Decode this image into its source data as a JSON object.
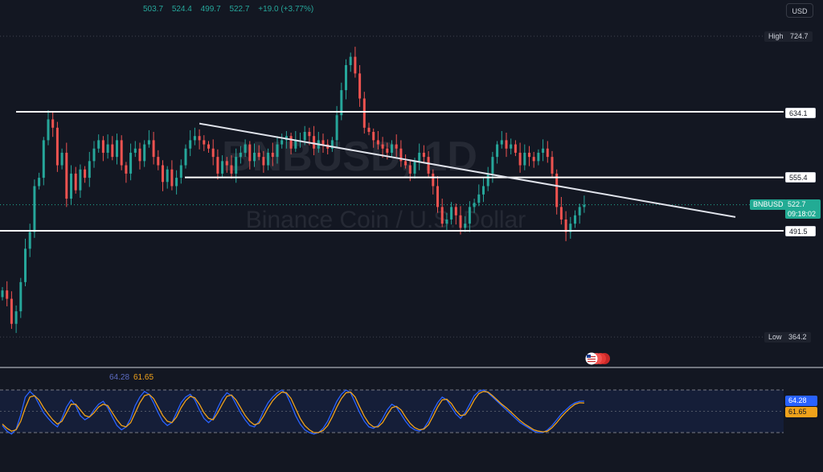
{
  "header": {
    "open": "503.7",
    "high": "524.4",
    "low": "499.7",
    "close": "522.7",
    "change": "+19.0 (+3.77%)"
  },
  "currency_button": "USD",
  "watermark": {
    "symbol": "BNBUSD, 1D",
    "name": "Binance Coin / U.S. Dollar"
  },
  "colors": {
    "background": "#131722",
    "up": "#26a69a",
    "down": "#ef5350",
    "k_line": "#2962ff",
    "d_line": "#f0a21b"
  },
  "price_tags": {
    "high_label": "High",
    "high_value": "724.7",
    "low_label": "Low",
    "low_value": "364.2",
    "level_1": "634.1",
    "level_2": "555.4",
    "level_3": "491.5",
    "ticker": "BNBUSD",
    "last_price": "522.7",
    "countdown": "09:18:02"
  },
  "oscillator": {
    "k_value": "64.28",
    "d_value": "61.65"
  },
  "chart_data": {
    "type": "candlestick",
    "title": "BNBUSD, 1D",
    "ylim": [
      340,
      760
    ],
    "horizontal_levels": [
      634.1,
      555.4,
      491.5
    ],
    "trendline": [
      {
        "i": 43,
        "price": 620
      },
      {
        "i": 160,
        "price": 508
      }
    ],
    "session_high": 724.7,
    "session_low": 364.2,
    "closes": [
      420,
      410,
      380,
      395,
      430,
      470,
      490,
      545,
      555,
      600,
      625,
      615,
      570,
      585,
      530,
      560,
      540,
      565,
      555,
      575,
      590,
      600,
      585,
      595,
      580,
      600,
      570,
      560,
      585,
      590,
      575,
      595,
      600,
      580,
      570,
      550,
      565,
      545,
      555,
      570,
      590,
      600,
      605,
      600,
      595,
      590,
      580,
      560,
      575,
      570,
      560,
      580,
      585,
      595,
      575,
      585,
      580,
      570,
      585,
      580,
      595,
      600,
      605,
      590,
      600,
      600,
      610,
      605,
      590,
      600,
      595,
      590,
      600,
      630,
      660,
      690,
      700,
      680,
      650,
      615,
      610,
      600,
      595,
      590,
      585,
      595,
      590,
      575,
      570,
      560,
      575,
      585,
      580,
      560,
      545,
      520,
      500,
      505,
      520,
      510,
      495,
      500,
      520,
      525,
      535,
      545,
      560,
      580,
      595,
      600,
      590,
      595,
      585,
      570,
      585,
      580,
      575,
      585,
      590,
      580,
      560,
      520,
      505,
      490,
      500,
      510,
      520,
      522.7
    ],
    "stoch_k": [
      30,
      22,
      18,
      25,
      45,
      70,
      78,
      72,
      60,
      48,
      40,
      33,
      28,
      40,
      56,
      66,
      58,
      44,
      38,
      42,
      52,
      60,
      64,
      55,
      42,
      30,
      24,
      28,
      40,
      58,
      70,
      78,
      74,
      62,
      48,
      36,
      30,
      34,
      48,
      62,
      70,
      74,
      66,
      52,
      40,
      34,
      40,
      55,
      68,
      76,
      72,
      60,
      48,
      38,
      30,
      28,
      36,
      50,
      62,
      70,
      76,
      80,
      74,
      60,
      44,
      32,
      24,
      20,
      18,
      20,
      26,
      36,
      50,
      64,
      74,
      80,
      76,
      62,
      48,
      36,
      28,
      26,
      30,
      40,
      52,
      60,
      56,
      46,
      36,
      28,
      24,
      22,
      26,
      36,
      50,
      62,
      70,
      66,
      56,
      46,
      40,
      48,
      60,
      72,
      78,
      80,
      76,
      70,
      64,
      58,
      52,
      46,
      40,
      34,
      30,
      26,
      22,
      20,
      20,
      24,
      30,
      38,
      46,
      52,
      58,
      62,
      64,
      64.28
    ],
    "stoch_d": [
      32,
      26,
      22,
      24,
      36,
      55,
      70,
      72,
      66,
      55,
      46,
      38,
      32,
      36,
      48,
      60,
      60,
      52,
      44,
      42,
      48,
      56,
      60,
      58,
      48,
      38,
      30,
      28,
      34,
      48,
      62,
      72,
      74,
      68,
      56,
      44,
      36,
      34,
      42,
      55,
      65,
      71,
      69,
      60,
      48,
      40,
      38,
      48,
      60,
      71,
      73,
      66,
      55,
      44,
      36,
      31,
      33,
      43,
      55,
      65,
      72,
      77,
      76,
      68,
      54,
      40,
      30,
      24,
      20,
      20,
      23,
      30,
      42,
      56,
      68,
      76,
      77,
      70,
      56,
      43,
      33,
      28,
      28,
      34,
      45,
      55,
      57,
      52,
      42,
      33,
      27,
      24,
      25,
      31,
      43,
      56,
      66,
      67,
      61,
      51,
      44,
      45,
      54,
      66,
      75,
      78,
      77,
      72,
      66,
      60,
      55,
      49,
      43,
      37,
      32,
      28,
      24,
      22,
      21,
      22,
      27,
      34,
      42,
      49,
      55,
      60,
      62,
      61.65
    ]
  }
}
